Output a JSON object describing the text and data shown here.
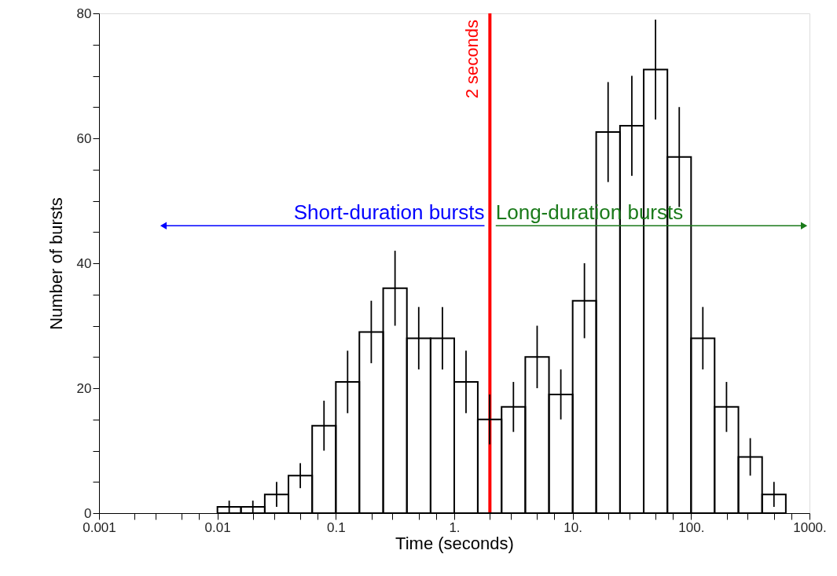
{
  "chart_data": {
    "type": "histogram",
    "xlabel": "Time (seconds)",
    "ylabel": "Number of bursts",
    "log": "x",
    "bins": [
      0.01,
      0.0158,
      0.0251,
      0.0398,
      0.0631,
      0.1,
      0.158,
      0.251,
      0.398,
      0.631,
      1,
      1.58,
      2.51,
      3.98,
      6.31,
      10,
      15.8,
      25.1,
      39.8,
      63.1,
      100,
      158,
      251,
      398,
      631
    ],
    "values": [
      1,
      1,
      3,
      6,
      14,
      21,
      29,
      36,
      28,
      28,
      21,
      15,
      17,
      25,
      19,
      34,
      61,
      62,
      71,
      57,
      28,
      17,
      9,
      3
    ],
    "errors": [
      1,
      1,
      2,
      2,
      4,
      5,
      5,
      6,
      5,
      5,
      5,
      4,
      4,
      5,
      4,
      6,
      8,
      8,
      8,
      8,
      5,
      4,
      3,
      2
    ],
    "color": "#000000",
    "xlim": [
      0.001,
      1000
    ],
    "ylim": [
      0,
      80
    ],
    "xticks": [
      0.001,
      0.01,
      0.1,
      {
        "value": 1,
        "label": "1."
      },
      {
        "value": 10,
        "label": "10."
      },
      {
        "value": 100,
        "label": "100."
      },
      {
        "value": 1000,
        "label": "1000."
      },
      {
        "value": 0.002,
        "label": null
      },
      {
        "value": 0.003,
        "label": null
      },
      {
        "value": 0.005,
        "label": null
      },
      {
        "value": 0.007,
        "label": null
      },
      {
        "value": 0.02,
        "label": null
      },
      {
        "value": 0.03,
        "label": null
      },
      {
        "value": 0.05,
        "label": null
      },
      {
        "value": 0.07,
        "label": null
      },
      {
        "value": 0.2,
        "label": null
      },
      {
        "value": 0.3,
        "label": null
      },
      {
        "value": 0.5,
        "label": null
      },
      {
        "value": 0.7,
        "label": null
      },
      {
        "value": 2,
        "label": null
      },
      {
        "value": 3,
        "label": null
      },
      {
        "value": 5,
        "label": null
      },
      {
        "value": 7,
        "label": null
      },
      {
        "value": 20,
        "label": null
      },
      {
        "value": 30,
        "label": null
      },
      {
        "value": 50,
        "label": null
      },
      {
        "value": 70,
        "label": null
      },
      {
        "value": 200,
        "label": null
      },
      {
        "value": 300,
        "label": null
      },
      {
        "value": 500,
        "label": null
      },
      {
        "value": 700,
        "label": null
      }
    ],
    "yticks": [
      0,
      20,
      40,
      60,
      80,
      {
        "value": 5,
        "label": null
      },
      {
        "value": 10,
        "label": null
      },
      {
        "value": 15,
        "label": null
      },
      {
        "value": 25,
        "label": null
      },
      {
        "value": 30,
        "label": null
      },
      {
        "value": 35,
        "label": null
      },
      {
        "value": 45,
        "label": null
      },
      {
        "value": 50,
        "label": null
      },
      {
        "value": 55,
        "label": null
      },
      {
        "value": 65,
        "label": null
      },
      {
        "value": 70,
        "label": null
      },
      {
        "value": 75,
        "label": null
      }
    ],
    "grid": false,
    "ref_lines": [
      {
        "axis": "x",
        "value": 2,
        "label": "2 seconds",
        "color": "#ff0000"
      }
    ],
    "annotations": [
      {
        "text": "Short-duration bursts",
        "x": 0.0035,
        "y": 46
      },
      {
        "text": "Long-duration bursts",
        "x": 900,
        "y": 46
      }
    ]
  }
}
